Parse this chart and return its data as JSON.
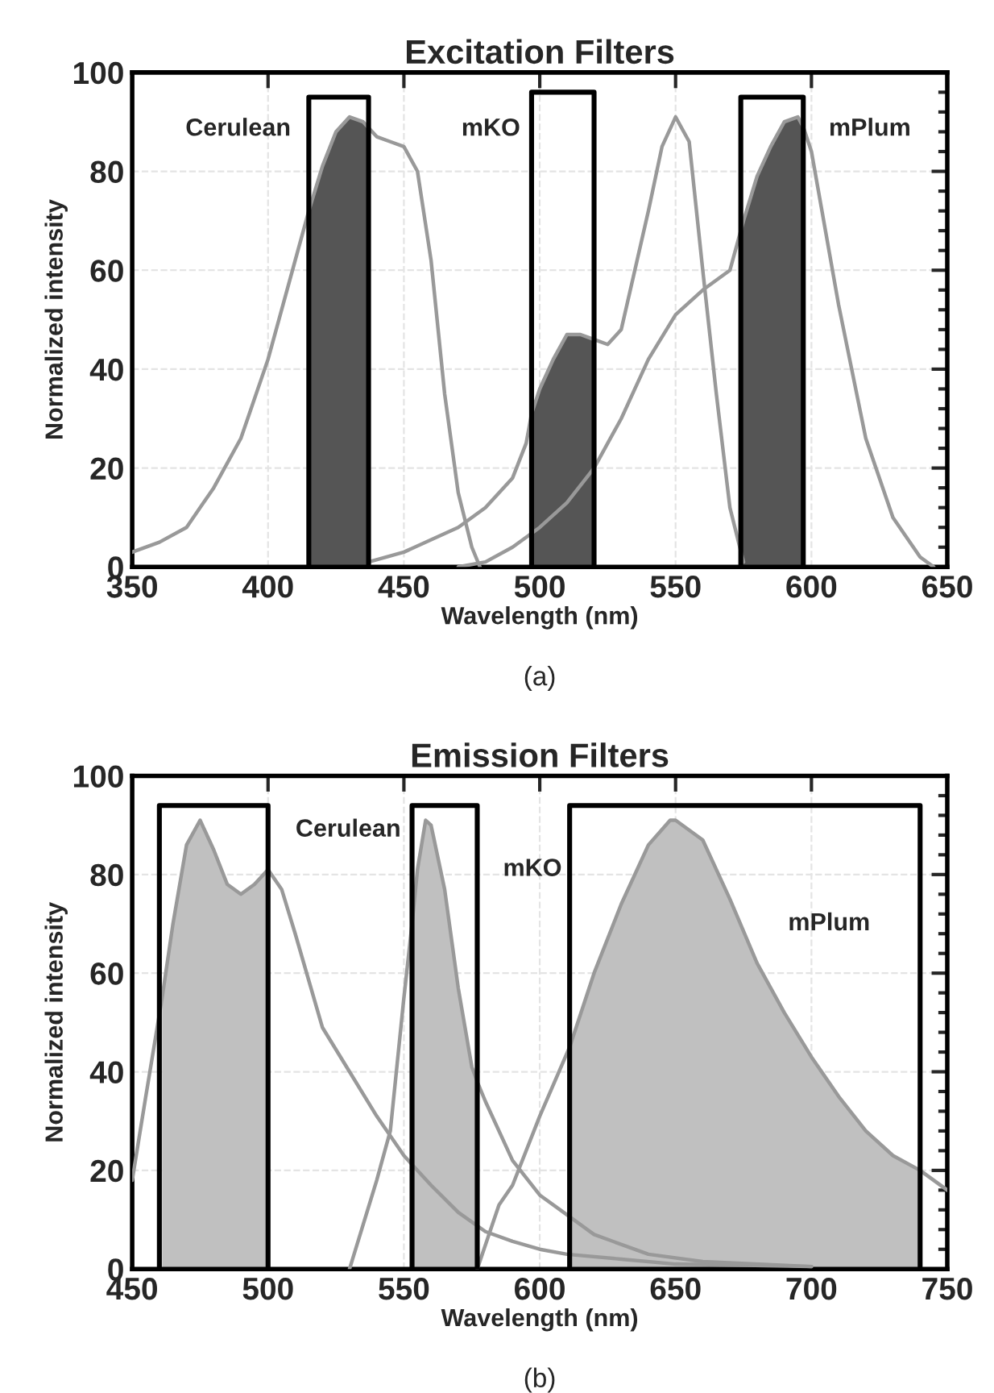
{
  "chart_data": [
    {
      "type": "line",
      "title": "Excitation Filters",
      "xlabel": "Wavelength (nm)",
      "ylabel": "Normalized intensity",
      "xlim": [
        350,
        650
      ],
      "xticks": [
        350,
        400,
        450,
        500,
        550,
        600,
        650
      ],
      "ylim": [
        0,
        100
      ],
      "yticks": [
        0,
        20,
        40,
        60,
        80,
        100
      ],
      "grid": true,
      "series": [
        {
          "type": "area",
          "color": "#555555",
          "x": [
            415,
            420,
            425,
            430,
            435,
            437
          ],
          "values": [
            72,
            81,
            88,
            91,
            90,
            89
          ]
        },
        {
          "type": "area",
          "color": "#555555",
          "x": [
            497,
            500,
            505,
            510,
            515,
            520
          ],
          "values": [
            31,
            36,
            42,
            47,
            47,
            46
          ]
        },
        {
          "type": "area",
          "color": "#555555",
          "x": [
            574,
            575,
            580,
            585,
            590,
            595,
            597
          ],
          "values": [
            68,
            70,
            79,
            85,
            90,
            91,
            89
          ]
        },
        {
          "color": "#999999",
          "x": [
            350,
            360,
            370,
            380,
            390,
            400,
            410,
            415,
            420,
            425,
            430,
            435,
            440,
            445,
            450,
            455,
            460,
            465,
            470,
            475,
            478
          ],
          "values": [
            3,
            5,
            8,
            16,
            26,
            42,
            62,
            72,
            81,
            88,
            91,
            90,
            87,
            86,
            85,
            80,
            62,
            35,
            15,
            4,
            0
          ]
        },
        {
          "color": "#999999",
          "x": [
            437,
            450,
            470,
            480,
            490,
            495,
            497,
            500,
            505,
            510,
            515,
            520,
            525,
            530,
            535,
            540,
            545,
            550,
            555,
            560,
            565,
            570,
            575
          ],
          "values": [
            1,
            3,
            8,
            12,
            18,
            25,
            31,
            36,
            42,
            47,
            47,
            46,
            45,
            48,
            60,
            72,
            85,
            91,
            86,
            60,
            35,
            12,
            1
          ]
        },
        {
          "color": "#999999",
          "x": [
            470,
            480,
            490,
            500,
            510,
            520,
            530,
            540,
            550,
            560,
            570,
            574,
            575,
            580,
            585,
            590,
            595,
            597,
            600,
            610,
            620,
            630,
            640,
            645
          ],
          "values": [
            0,
            1,
            4,
            8,
            13,
            20,
            30,
            42,
            51,
            56,
            60,
            68,
            70,
            79,
            85,
            90,
            91,
            89,
            84,
            53,
            26,
            10,
            2,
            0
          ]
        },
        {
          "type": "line",
          "color": "#000000",
          "x": [
            415,
            415,
            437,
            437
          ],
          "values": [
            0,
            95,
            95,
            0
          ]
        },
        {
          "type": "line",
          "color": "#000000",
          "x": [
            497,
            497,
            520,
            520
          ],
          "values": [
            0,
            96,
            96,
            0
          ]
        },
        {
          "type": "line",
          "color": "#000000",
          "x": [
            574,
            574,
            597,
            597
          ],
          "values": [
            0,
            95,
            95,
            0
          ]
        }
      ],
      "annotations": [
        "Cerulean",
        "mKO",
        "mPlum",
        "(a)"
      ]
    },
    {
      "type": "line",
      "title": "Emission Filters",
      "xlabel": "Wavelength (nm)",
      "ylabel": "Normalized intensity",
      "xlim": [
        450,
        750
      ],
      "xticks": [
        450,
        500,
        550,
        600,
        650,
        700,
        750
      ],
      "ylim": [
        0,
        100
      ],
      "yticks": [
        0,
        20,
        40,
        60,
        80,
        100
      ],
      "grid": true,
      "series": [
        {
          "type": "area",
          "color": "#c0c0c0",
          "x": [
            461,
            465,
            470,
            475,
            480,
            485,
            490,
            495,
            500
          ],
          "values": [
            55,
            70,
            86,
            91,
            85,
            78,
            76,
            78,
            81
          ]
        },
        {
          "type": "area",
          "color": "#c0c0c0",
          "x": [
            553,
            555,
            558,
            560,
            565,
            570,
            575,
            577
          ],
          "values": [
            70,
            81,
            91,
            90,
            77,
            57,
            41,
            38
          ]
        },
        {
          "type": "area",
          "color": "#c0c0c0",
          "x": [
            611,
            620,
            630,
            640,
            648,
            650,
            660,
            670,
            680,
            690,
            700,
            710,
            720,
            730,
            740
          ],
          "values": [
            45,
            60,
            74,
            86,
            91,
            91,
            87,
            75,
            62,
            52,
            43,
            35,
            28,
            23,
            20
          ]
        },
        {
          "color": "#999999",
          "x": [
            450,
            455,
            461,
            465,
            470,
            475,
            480,
            485,
            490,
            495,
            500,
            505,
            510,
            520,
            530,
            540,
            550,
            560,
            570,
            580,
            590,
            600,
            610,
            630,
            650,
            700
          ],
          "values": [
            18,
            35,
            55,
            70,
            86,
            91,
            85,
            78,
            76,
            78,
            81,
            77,
            68,
            49,
            40,
            31,
            23,
            17,
            11.5,
            7.6,
            5.6,
            4,
            3,
            2,
            1,
            0.5
          ]
        },
        {
          "color": "#999999",
          "x": [
            530,
            540,
            545,
            550,
            553,
            555,
            558,
            560,
            565,
            570,
            575,
            577,
            580,
            590,
            600,
            610,
            620,
            640,
            660,
            700
          ],
          "values": [
            0,
            18,
            28,
            55,
            70,
            81,
            91,
            90,
            77,
            57,
            41,
            38,
            34,
            22,
            15,
            11,
            7,
            3,
            1.5,
            0.5
          ]
        },
        {
          "color": "#999999",
          "x": [
            577,
            585,
            590,
            600,
            611,
            620,
            630,
            640,
            648,
            650,
            660,
            670,
            680,
            690,
            700,
            710,
            720,
            730,
            740,
            750
          ],
          "values": [
            0,
            13,
            17,
            31,
            45,
            60,
            74,
            86,
            91,
            91,
            87,
            75,
            62,
            52,
            43,
            35,
            28,
            23,
            20,
            16
          ]
        },
        {
          "type": "line",
          "color": "#000000",
          "x": [
            460,
            460,
            500,
            500
          ],
          "values": [
            0,
            94,
            94,
            0
          ]
        },
        {
          "type": "line",
          "color": "#000000",
          "x": [
            553,
            553,
            577,
            577
          ],
          "values": [
            0,
            94,
            94,
            0
          ]
        },
        {
          "type": "line",
          "color": "#000000",
          "x": [
            611,
            611,
            740,
            740
          ],
          "values": [
            0,
            94,
            94,
            0
          ]
        }
      ],
      "annotations": [
        "Cerulean",
        "mKO",
        "mPlum",
        "(b)"
      ]
    }
  ]
}
